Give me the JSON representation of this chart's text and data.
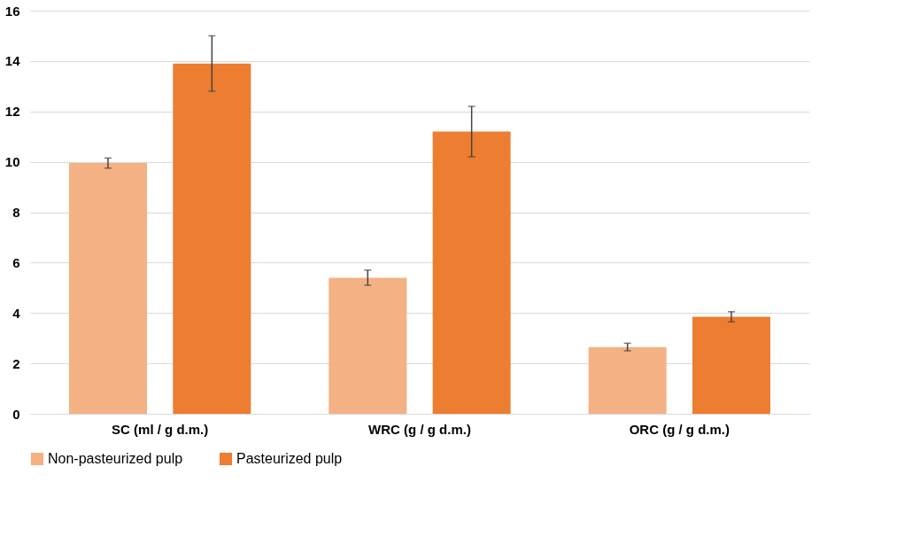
{
  "chart_data": {
    "type": "bar",
    "categories": [
      "SC (ml / g d.m.)",
      "WRC (g / g d.m.)",
      "ORC (g / g d.m.)"
    ],
    "series": [
      {
        "name": "Non-pasteurized pulp",
        "color": "#f4b183",
        "values": [
          9.95,
          5.4,
          2.65
        ],
        "errors": [
          0.2,
          0.3,
          0.15
        ]
      },
      {
        "name": "Pasteurized pulp",
        "color": "#ed7d31",
        "values": [
          13.9,
          11.2,
          3.85
        ],
        "errors": [
          1.1,
          1.0,
          0.2
        ]
      }
    ],
    "ylim": [
      0,
      16
    ],
    "yticks": [
      0,
      2,
      4,
      6,
      8,
      10,
      12,
      14,
      16
    ],
    "grid": "y",
    "legend": "bottom"
  }
}
